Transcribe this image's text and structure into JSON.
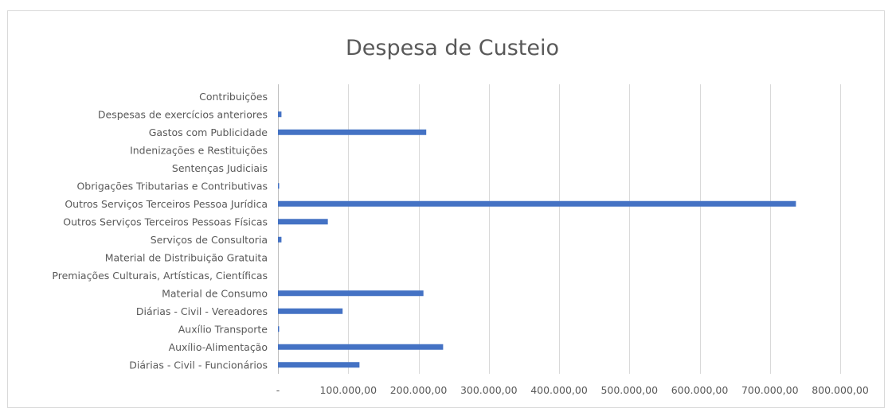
{
  "chart_data": {
    "type": "bar",
    "orientation": "horizontal",
    "title": "Despesa de Custeio",
    "xlabel": "",
    "ylabel": "",
    "xlim": [
      0,
      800000
    ],
    "grid": true,
    "legend": "none",
    "bar_color": "#4472c4",
    "x_tick_labels": [
      "-",
      "100.000,00",
      "200.000,00",
      "300.000,00",
      "400.000,00",
      "500.000,00",
      "600.000,00",
      "700.000,00",
      "800.000,00"
    ],
    "categories": [
      "Contribuições",
      "Despesas de exercícios anteriores",
      "Gastos com Publicidade",
      "Indenizações e Restituições",
      "Sentenças Judiciais",
      "Obrigações Tributarias e Contributivas",
      "Outros Serviços Terceiros Pessoa Jurídica",
      "Outros Serviços Terceiros Pessoas Físicas",
      "Serviços de Consultoria",
      "Material de Distribuição Gratuita",
      "Premiações Culturais, Artísticas, Científicas",
      "Material de Consumo",
      "Diárias - Civil - Vereadores",
      "Auxílio Transporte",
      "Auxílio-Alimentação",
      "Diárias - Civil - Funcionários"
    ],
    "values": [
      0,
      5000,
      211000,
      0,
      0,
      1500,
      737000,
      71000,
      5000,
      0,
      0,
      207000,
      92000,
      1000,
      235000,
      116000
    ]
  }
}
